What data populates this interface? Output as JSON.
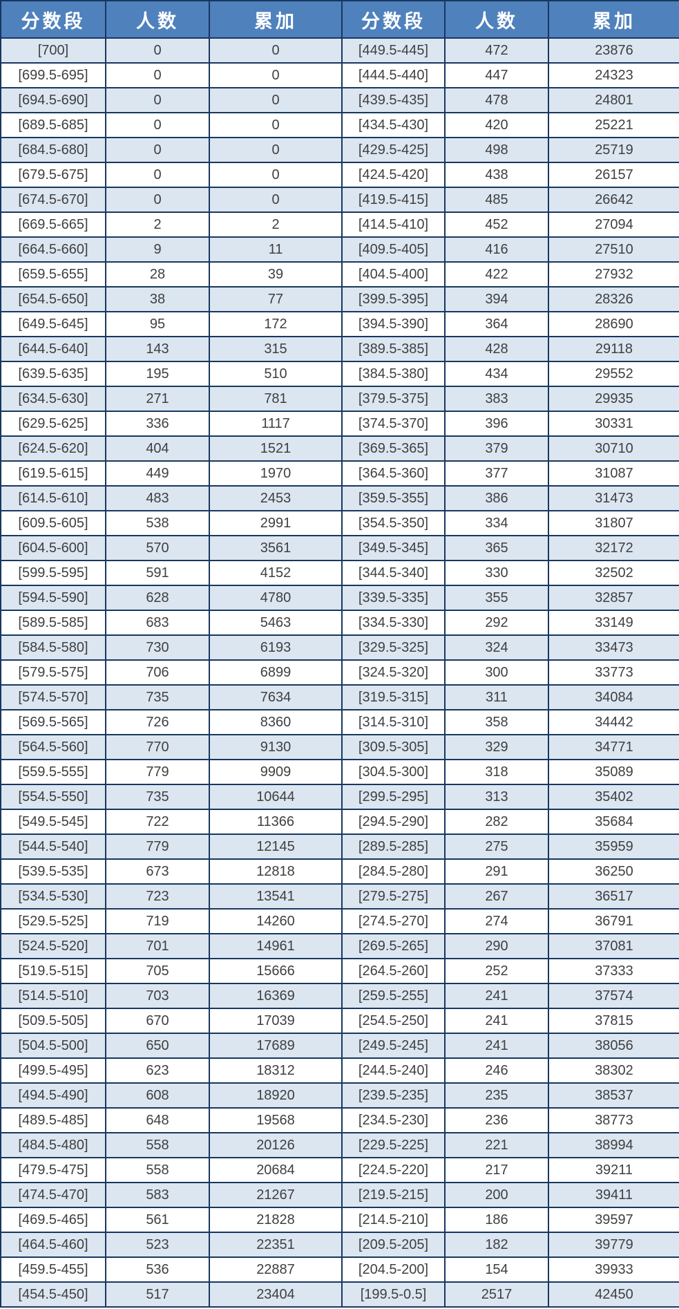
{
  "table": {
    "headers": {
      "score_range": "分数段",
      "count": "人数",
      "cumulative": "累加"
    },
    "left_rows": [
      [
        "[700]",
        0,
        0
      ],
      [
        "[699.5-695]",
        0,
        0
      ],
      [
        "[694.5-690]",
        0,
        0
      ],
      [
        "[689.5-685]",
        0,
        0
      ],
      [
        "[684.5-680]",
        0,
        0
      ],
      [
        "[679.5-675]",
        0,
        0
      ],
      [
        "[674.5-670]",
        0,
        0
      ],
      [
        "[669.5-665]",
        2,
        2
      ],
      [
        "[664.5-660]",
        9,
        11
      ],
      [
        "[659.5-655]",
        28,
        39
      ],
      [
        "[654.5-650]",
        38,
        77
      ],
      [
        "[649.5-645]",
        95,
        172
      ],
      [
        "[644.5-640]",
        143,
        315
      ],
      [
        "[639.5-635]",
        195,
        510
      ],
      [
        "[634.5-630]",
        271,
        781
      ],
      [
        "[629.5-625]",
        336,
        1117
      ],
      [
        "[624.5-620]",
        404,
        1521
      ],
      [
        "[619.5-615]",
        449,
        1970
      ],
      [
        "[614.5-610]",
        483,
        2453
      ],
      [
        "[609.5-605]",
        538,
        2991
      ],
      [
        "[604.5-600]",
        570,
        3561
      ],
      [
        "[599.5-595]",
        591,
        4152
      ],
      [
        "[594.5-590]",
        628,
        4780
      ],
      [
        "[589.5-585]",
        683,
        5463
      ],
      [
        "[584.5-580]",
        730,
        6193
      ],
      [
        "[579.5-575]",
        706,
        6899
      ],
      [
        "[574.5-570]",
        735,
        7634
      ],
      [
        "[569.5-565]",
        726,
        8360
      ],
      [
        "[564.5-560]",
        770,
        9130
      ],
      [
        "[559.5-555]",
        779,
        9909
      ],
      [
        "[554.5-550]",
        735,
        10644
      ],
      [
        "[549.5-545]",
        722,
        11366
      ],
      [
        "[544.5-540]",
        779,
        12145
      ],
      [
        "[539.5-535]",
        673,
        12818
      ],
      [
        "[534.5-530]",
        723,
        13541
      ],
      [
        "[529.5-525]",
        719,
        14260
      ],
      [
        "[524.5-520]",
        701,
        14961
      ],
      [
        "[519.5-515]",
        705,
        15666
      ],
      [
        "[514.5-510]",
        703,
        16369
      ],
      [
        "[509.5-505]",
        670,
        17039
      ],
      [
        "[504.5-500]",
        650,
        17689
      ],
      [
        "[499.5-495]",
        623,
        18312
      ],
      [
        "[494.5-490]",
        608,
        18920
      ],
      [
        "[489.5-485]",
        648,
        19568
      ],
      [
        "[484.5-480]",
        558,
        20126
      ],
      [
        "[479.5-475]",
        558,
        20684
      ],
      [
        "[474.5-470]",
        583,
        21267
      ],
      [
        "[469.5-465]",
        561,
        21828
      ],
      [
        "[464.5-460]",
        523,
        22351
      ],
      [
        "[459.5-455]",
        536,
        22887
      ],
      [
        "[454.5-450]",
        517,
        23404
      ]
    ],
    "right_rows": [
      [
        "[449.5-445]",
        472,
        23876
      ],
      [
        "[444.5-440]",
        447,
        24323
      ],
      [
        "[439.5-435]",
        478,
        24801
      ],
      [
        "[434.5-430]",
        420,
        25221
      ],
      [
        "[429.5-425]",
        498,
        25719
      ],
      [
        "[424.5-420]",
        438,
        26157
      ],
      [
        "[419.5-415]",
        485,
        26642
      ],
      [
        "[414.5-410]",
        452,
        27094
      ],
      [
        "[409.5-405]",
        416,
        27510
      ],
      [
        "[404.5-400]",
        422,
        27932
      ],
      [
        "[399.5-395]",
        394,
        28326
      ],
      [
        "[394.5-390]",
        364,
        28690
      ],
      [
        "[389.5-385]",
        428,
        29118
      ],
      [
        "[384.5-380]",
        434,
        29552
      ],
      [
        "[379.5-375]",
        383,
        29935
      ],
      [
        "[374.5-370]",
        396,
        30331
      ],
      [
        "[369.5-365]",
        379,
        30710
      ],
      [
        "[364.5-360]",
        377,
        31087
      ],
      [
        "[359.5-355]",
        386,
        31473
      ],
      [
        "[354.5-350]",
        334,
        31807
      ],
      [
        "[349.5-345]",
        365,
        32172
      ],
      [
        "[344.5-340]",
        330,
        32502
      ],
      [
        "[339.5-335]",
        355,
        32857
      ],
      [
        "[334.5-330]",
        292,
        33149
      ],
      [
        "[329.5-325]",
        324,
        33473
      ],
      [
        "[324.5-320]",
        300,
        33773
      ],
      [
        "[319.5-315]",
        311,
        34084
      ],
      [
        "[314.5-310]",
        358,
        34442
      ],
      [
        "[309.5-305]",
        329,
        34771
      ],
      [
        "[304.5-300]",
        318,
        35089
      ],
      [
        "[299.5-295]",
        313,
        35402
      ],
      [
        "[294.5-290]",
        282,
        35684
      ],
      [
        "[289.5-285]",
        275,
        35959
      ],
      [
        "[284.5-280]",
        291,
        36250
      ],
      [
        "[279.5-275]",
        267,
        36517
      ],
      [
        "[274.5-270]",
        274,
        36791
      ],
      [
        "[269.5-265]",
        290,
        37081
      ],
      [
        "[264.5-260]",
        252,
        37333
      ],
      [
        "[259.5-255]",
        241,
        37574
      ],
      [
        "[254.5-250]",
        241,
        37815
      ],
      [
        "[249.5-245]",
        241,
        38056
      ],
      [
        "[244.5-240]",
        246,
        38302
      ],
      [
        "[239.5-235]",
        235,
        38537
      ],
      [
        "[234.5-230]",
        236,
        38773
      ],
      [
        "[229.5-225]",
        221,
        38994
      ],
      [
        "[224.5-220]",
        217,
        39211
      ],
      [
        "[219.5-215]",
        200,
        39411
      ],
      [
        "[214.5-210]",
        186,
        39597
      ],
      [
        "[209.5-205]",
        182,
        39779
      ],
      [
        "[204.5-200]",
        154,
        39933
      ],
      [
        "[199.5-0.5]",
        2517,
        42450
      ]
    ]
  },
  "colors": {
    "header_background": "#4F81BD",
    "header_text": "#FFFFFF",
    "row_stripe": "#DCE6F1",
    "row_plain": "#FFFFFF",
    "border": "#17375E",
    "cell_text": "#3F3F3F"
  }
}
